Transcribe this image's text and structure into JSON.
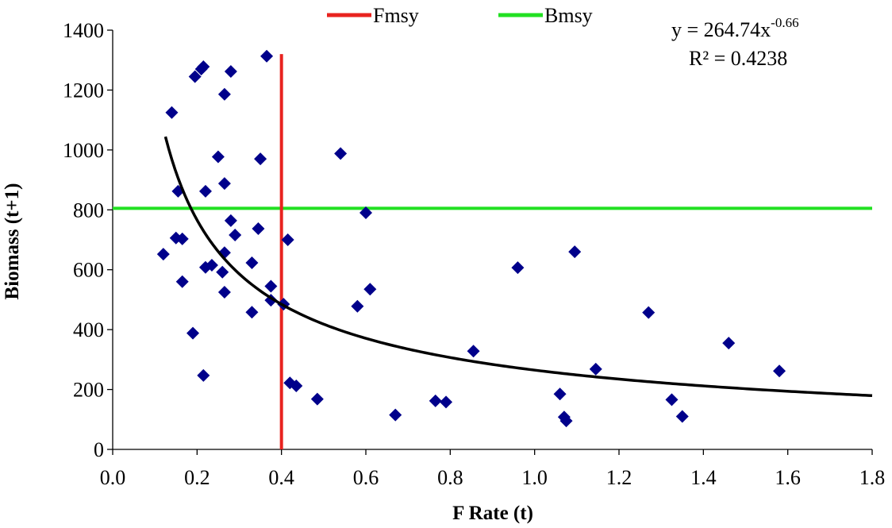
{
  "chart_data": {
    "type": "scatter",
    "xlabel": "F Rate (t)",
    "ylabel": "Biomass (t+1)",
    "xlim": [
      0,
      1.8
    ],
    "ylim": [
      0,
      1400
    ],
    "xticks": [
      "0.0",
      "0.2",
      "0.4",
      "0.6",
      "0.8",
      "1.0",
      "1.2",
      "1.4",
      "1.6",
      "1.8"
    ],
    "yticks": [
      "0",
      "200",
      "400",
      "600",
      "800",
      "1000",
      "1200",
      "1400"
    ],
    "grid": false,
    "legend_position": "top",
    "series": [
      {
        "type": "scatter",
        "marker": "diamond",
        "color": "#00008b",
        "points": [
          [
            0.12,
            652
          ],
          [
            0.14,
            1125
          ],
          [
            0.15,
            706
          ],
          [
            0.155,
            862
          ],
          [
            0.165,
            703
          ],
          [
            0.165,
            560
          ],
          [
            0.19,
            388
          ],
          [
            0.195,
            1245
          ],
          [
            0.21,
            1270
          ],
          [
            0.215,
            1278
          ],
          [
            0.215,
            247
          ],
          [
            0.22,
            862
          ],
          [
            0.22,
            608
          ],
          [
            0.235,
            615
          ],
          [
            0.25,
            977
          ],
          [
            0.26,
            592
          ],
          [
            0.265,
            525
          ],
          [
            0.265,
            888
          ],
          [
            0.265,
            657
          ],
          [
            0.265,
            1186
          ],
          [
            0.28,
            1262
          ],
          [
            0.28,
            764
          ],
          [
            0.29,
            716
          ],
          [
            0.33,
            623
          ],
          [
            0.33,
            458
          ],
          [
            0.345,
            737
          ],
          [
            0.35,
            970
          ],
          [
            0.365,
            1313
          ],
          [
            0.375,
            545
          ],
          [
            0.375,
            498
          ],
          [
            0.405,
            485
          ],
          [
            0.415,
            700
          ],
          [
            0.42,
            222
          ],
          [
            0.435,
            212
          ],
          [
            0.485,
            168
          ],
          [
            0.54,
            988
          ],
          [
            0.58,
            478
          ],
          [
            0.6,
            790
          ],
          [
            0.61,
            535
          ],
          [
            0.67,
            115
          ],
          [
            0.765,
            162
          ],
          [
            0.79,
            158
          ],
          [
            0.855,
            328
          ],
          [
            0.96,
            607
          ],
          [
            1.06,
            185
          ],
          [
            1.07,
            108
          ],
          [
            1.075,
            95
          ],
          [
            1.095,
            660
          ],
          [
            1.145,
            268
          ],
          [
            1.27,
            457
          ],
          [
            1.325,
            166
          ],
          [
            1.35,
            110
          ],
          [
            1.46,
            355
          ],
          [
            1.58,
            262
          ]
        ]
      },
      {
        "name": "Fmsy",
        "type": "vertical-line",
        "x": 0.4,
        "y_range": [
          0,
          1320
        ],
        "color": "#e8231f"
      },
      {
        "name": "Bmsy",
        "type": "horizontal-line",
        "y": 805,
        "x_range": [
          0,
          1.8
        ],
        "color": "#22e022"
      },
      {
        "type": "power-trendline",
        "a": 264.74,
        "b": -0.66,
        "x_range": [
          0.125,
          1.8
        ],
        "color": "#000000"
      }
    ],
    "legend": [
      {
        "label": "Fmsy",
        "color": "#e8231f"
      },
      {
        "label": "Bmsy",
        "color": "#22e022"
      }
    ],
    "annotation": {
      "equation_prefix": "y = 264.74x",
      "equation_exponent": "-0.66",
      "r_squared": "R² = 0.4238"
    }
  }
}
